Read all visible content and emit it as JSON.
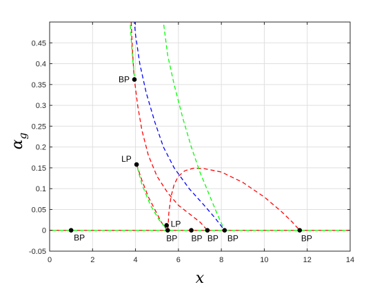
{
  "chart_data": {
    "type": "line",
    "xlabel": "x",
    "ylabel": "α_g",
    "xlim": [
      0,
      14
    ],
    "ylim": [
      -0.05,
      0.5
    ],
    "xticks": [
      0,
      2,
      4,
      6,
      8,
      10,
      12,
      14
    ],
    "xtick_labels": [
      "0",
      "2",
      "4",
      "6",
      "8",
      "10",
      "12",
      "14"
    ],
    "yticks": [
      -0.05,
      0,
      0.05,
      0.1,
      0.15,
      0.2,
      0.25,
      0.3,
      0.35,
      0.4,
      0.45
    ],
    "ytick_labels": [
      "-0.05",
      "0",
      "0.05",
      "0.1",
      "0.15",
      "0.2",
      "0.25",
      "0.3",
      "0.35",
      "0.4",
      "0.45"
    ],
    "grid": true,
    "series": [
      {
        "color": "#ff0000",
        "style": "dashed",
        "segments": [
          [
            [
              0,
              0
            ],
            [
              14,
              0
            ]
          ],
          [
            [
              3.8,
              0.5
            ],
            [
              3.85,
              0.44
            ],
            [
              3.92,
              0.38
            ],
            [
              3.95,
              0.362
            ],
            [
              4.1,
              0.3
            ],
            [
              4.3,
              0.24
            ],
            [
              4.6,
              0.18
            ],
            [
              5.0,
              0.13
            ],
            [
              5.5,
              0.09
            ],
            [
              6.0,
              0.06
            ],
            [
              6.5,
              0.04
            ],
            [
              7.0,
              0.02
            ],
            [
              7.35,
              0
            ]
          ],
          [
            [
              4.05,
              0.158
            ],
            [
              4.3,
              0.12
            ],
            [
              4.6,
              0.08
            ],
            [
              4.9,
              0.05
            ],
            [
              5.2,
              0.02
            ],
            [
              5.45,
              0.002
            ],
            [
              5.5,
              0
            ]
          ],
          [
            [
              5.5,
              0.002
            ],
            [
              5.52,
              0.01
            ],
            [
              5.55,
              0.04
            ],
            [
              5.65,
              0.08
            ],
            [
              5.8,
              0.11
            ],
            [
              6.0,
              0.13
            ],
            [
              6.3,
              0.143
            ],
            [
              6.7,
              0.149
            ],
            [
              7.2,
              0.148
            ],
            [
              8.0,
              0.14
            ],
            [
              9.0,
              0.115
            ],
            [
              10.0,
              0.08
            ],
            [
              10.8,
              0.045
            ],
            [
              11.3,
              0.02
            ],
            [
              11.65,
              0
            ]
          ]
        ]
      },
      {
        "color": "#0000ff",
        "style": "dashed",
        "segments": [
          [
            [
              3.95,
              0.5
            ],
            [
              4.0,
              0.47
            ],
            [
              4.2,
              0.4
            ],
            [
              4.5,
              0.33
            ],
            [
              4.9,
              0.26
            ],
            [
              5.3,
              0.2
            ],
            [
              5.8,
              0.15
            ],
            [
              6.5,
              0.1
            ],
            [
              7.2,
              0.06
            ],
            [
              7.7,
              0.03
            ],
            [
              8.15,
              0
            ]
          ]
        ]
      },
      {
        "color": "#00ff00",
        "style": "dashed",
        "segments": [
          [
            [
              0,
              0
            ],
            [
              14,
              0
            ]
          ],
          [
            [
              3.75,
              0.5
            ],
            [
              3.8,
              0.46
            ],
            [
              3.87,
              0.41
            ],
            [
              3.95,
              0.37
            ]
          ],
          [
            [
              4.05,
              0.158
            ],
            [
              4.3,
              0.11
            ],
            [
              4.7,
              0.06
            ],
            [
              5.1,
              0.025
            ],
            [
              5.5,
              0
            ]
          ],
          [
            [
              5.3,
              0.5
            ],
            [
              5.5,
              0.42
            ],
            [
              5.8,
              0.35
            ],
            [
              6.2,
              0.27
            ],
            [
              6.6,
              0.2
            ],
            [
              7.0,
              0.14
            ],
            [
              7.4,
              0.09
            ],
            [
              7.8,
              0.04
            ],
            [
              8.15,
              0
            ]
          ]
        ]
      }
    ],
    "points": [
      {
        "label": "BP",
        "x": 1.0,
        "y": 0
      },
      {
        "label": "BP",
        "x": 5.5,
        "y": 0
      },
      {
        "label": "BP",
        "x": 6.6,
        "y": 0
      },
      {
        "label": "BP",
        "x": 7.35,
        "y": 0
      },
      {
        "label": "BP",
        "x": 8.15,
        "y": 0
      },
      {
        "label": "BP",
        "x": 11.65,
        "y": 0
      },
      {
        "label": "BP",
        "x": 3.95,
        "y": 0.362
      },
      {
        "label": "LP",
        "x": 4.05,
        "y": 0.158
      },
      {
        "label": "LP",
        "x": 5.45,
        "y": 0.012
      }
    ]
  }
}
